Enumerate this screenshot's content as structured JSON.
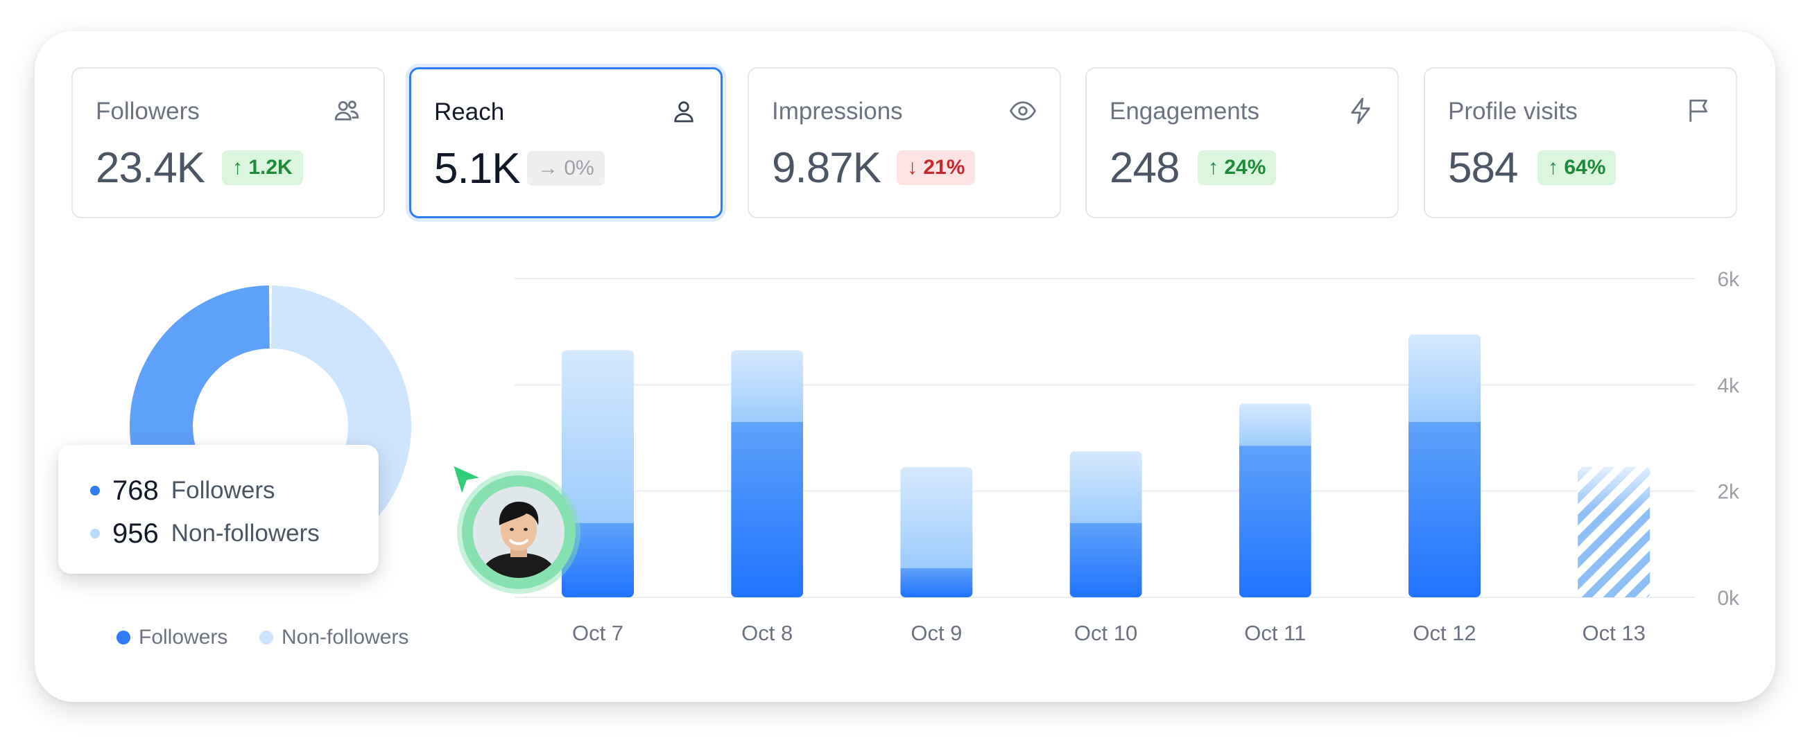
{
  "metrics": [
    {
      "label": "Followers",
      "value": "23.4K",
      "badge": "↑ 1.2K",
      "trend": "up",
      "icon": "users-icon"
    },
    {
      "label": "Reach",
      "value": "5.1K",
      "badge": "→ 0%",
      "trend": "flat",
      "icon": "user-icon",
      "selected": true
    },
    {
      "label": "Impressions",
      "value": "9.87K",
      "badge": "↓ 21%",
      "trend": "down",
      "icon": "eye-icon"
    },
    {
      "label": "Engagements",
      "value": "248",
      "badge": "↑ 24%",
      "trend": "up",
      "icon": "lightning-icon"
    },
    {
      "label": "Profile visits",
      "value": "584",
      "badge": "↑ 64%",
      "trend": "up",
      "icon": "flag-icon"
    }
  ],
  "donut": {
    "series": [
      {
        "name": "Followers",
        "value": 768,
        "color": "#5ea1fb"
      },
      {
        "name": "Non-followers",
        "value": 956,
        "color": "#cfe5fd"
      }
    ]
  },
  "tooltip": {
    "rows": [
      {
        "value": "768",
        "label": "Followers",
        "color": "#2f7cf6"
      },
      {
        "value": "956",
        "label": "Non-followers",
        "color": "#b9dafc"
      }
    ]
  },
  "legend": {
    "items": [
      {
        "label": "Followers",
        "color": "#2f7cf6"
      },
      {
        "label": "Non-followers",
        "color": "#cce4fd"
      }
    ]
  },
  "chart_data": {
    "type": "bar",
    "stacked": true,
    "categories": [
      "Oct 7",
      "Oct 8",
      "Oct 9",
      "Oct 10",
      "Oct 11",
      "Oct 12",
      "Oct 13"
    ],
    "series": [
      {
        "name": "Followers",
        "values": [
          1400,
          3300,
          550,
          1400,
          2850,
          3300,
          0
        ]
      },
      {
        "name": "Non-followers",
        "values": [
          3250,
          1350,
          1900,
          1350,
          800,
          1650,
          0
        ]
      }
    ],
    "projected": [
      false,
      false,
      false,
      false,
      false,
      false,
      true
    ],
    "projected_total": 2450,
    "ylim": [
      0,
      6000
    ],
    "yticks": [
      0,
      2000,
      4000,
      6000
    ],
    "ytick_labels": [
      "0k",
      "2k",
      "4k",
      "6k"
    ],
    "grid": true,
    "colors": {
      "followers": "#1f73ff",
      "nonfollowers": "#cfe5fd",
      "projected": "#8fbff8"
    }
  }
}
